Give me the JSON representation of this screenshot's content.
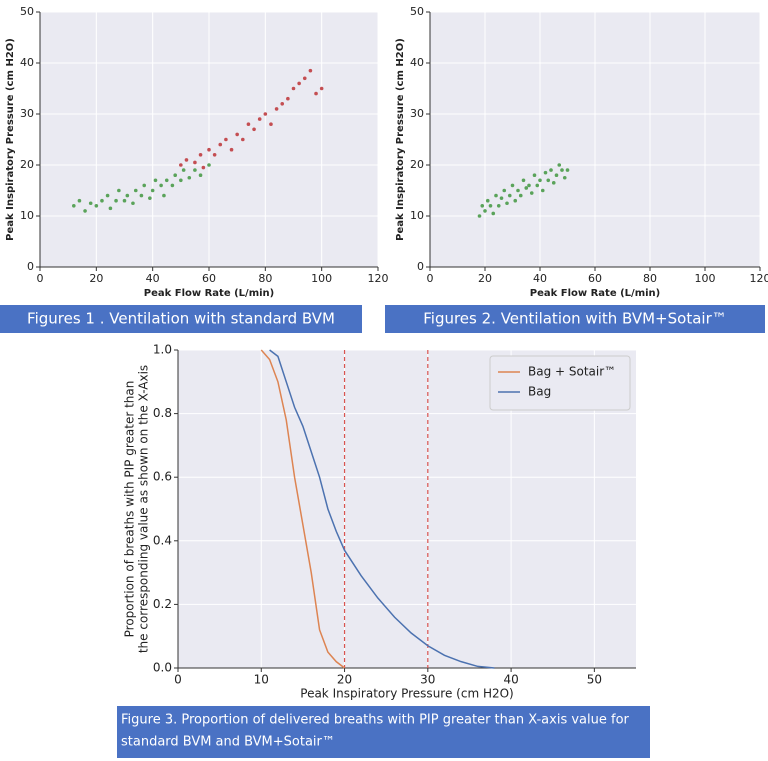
{
  "chart_data": [
    {
      "type": "scatter",
      "caption": "Figures 1 .  Ventilation with standard BVM",
      "xlabel": "Peak Flow Rate (L/min)",
      "ylabel": "Peak Inspiratory Pressure (cm H2O)",
      "xlim": [
        0,
        120
      ],
      "xticks": [
        0,
        20,
        40,
        60,
        80,
        100,
        120
      ],
      "ylim": [
        0,
        50
      ],
      "yticks": [
        0,
        10,
        20,
        30,
        40,
        50
      ],
      "grid": true,
      "series": [
        {
          "color": "#5aa35a",
          "x": [
            12,
            14,
            16,
            18,
            20,
            22,
            24,
            25,
            27,
            28,
            30,
            31,
            33,
            34,
            36,
            37,
            39,
            40,
            41,
            43,
            44,
            45,
            47,
            48,
            50,
            51,
            53,
            55,
            57,
            60
          ],
          "values": [
            12,
            13,
            11,
            12.5,
            12,
            13,
            14,
            11.5,
            13,
            15,
            13,
            14,
            12.5,
            15,
            14,
            16,
            13.5,
            15,
            17,
            16,
            14,
            17,
            16,
            18,
            17,
            19,
            17.5,
            19,
            18,
            20
          ]
        },
        {
          "color": "#c44e52",
          "x": [
            50,
            52,
            55,
            57,
            58,
            60,
            62,
            64,
            66,
            68,
            70,
            72,
            74,
            76,
            78,
            80,
            82,
            84,
            86,
            88,
            90,
            92,
            94,
            96,
            98,
            100
          ],
          "values": [
            20,
            21,
            20.5,
            22,
            19.5,
            23,
            22,
            24,
            25,
            23,
            26,
            25,
            28,
            27,
            29,
            30,
            28,
            31,
            32,
            33,
            35,
            36,
            37,
            38.5,
            34,
            35
          ]
        }
      ]
    },
    {
      "type": "scatter",
      "caption": "Figures 2.  Ventilation with BVM+Sotair™",
      "xlabel": "Peak Flow Rate (L/min)",
      "ylabel": "Peak Inspiratory Pressure (cm H2O)",
      "xlim": [
        0,
        120
      ],
      "xticks": [
        0,
        20,
        40,
        60,
        80,
        100,
        120
      ],
      "ylim": [
        0,
        50
      ],
      "yticks": [
        0,
        10,
        20,
        30,
        40,
        50
      ],
      "grid": true,
      "series": [
        {
          "color": "#5aa35a",
          "x": [
            18,
            19,
            20,
            21,
            22,
            23,
            24,
            25,
            26,
            27,
            28,
            29,
            30,
            31,
            32,
            33,
            34,
            35,
            36,
            37,
            38,
            39,
            40,
            41,
            42,
            43,
            44,
            45,
            46,
            47,
            48,
            49,
            50
          ],
          "values": [
            10,
            12,
            11,
            13,
            12,
            10.5,
            14,
            12,
            13.5,
            15,
            12.5,
            14,
            16,
            13,
            15,
            14,
            17,
            15.5,
            16,
            14.5,
            18,
            16,
            17,
            15,
            18.5,
            17,
            19,
            16.5,
            18,
            20,
            19,
            17.5,
            19
          ]
        }
      ]
    },
    {
      "type": "line",
      "caption": [
        "Figure 3. Proportion of delivered breaths with PIP greater than X-axis value for",
        "standard BVM and BVM+Sotair™"
      ],
      "xlabel": "Peak Inspiratory Pressure (cm H2O)",
      "ylabel": [
        "Proportion of breaths with PIP greater than",
        "the corresponding value as shown on the X-Axis"
      ],
      "xlim": [
        0,
        55
      ],
      "xticks": [
        0,
        10,
        20,
        30,
        40,
        50
      ],
      "ylim": [
        0,
        1
      ],
      "yticks": [
        {
          "value": 0,
          "label": "0.0"
        },
        0.2,
        0.4,
        0.6,
        0.8,
        {
          "value": 1,
          "label": "1.0"
        }
      ],
      "grid": true,
      "legend": "upper right",
      "vlines": [
        20,
        30
      ],
      "vline_color": "#d9534f",
      "series": [
        {
          "name": "Bag + Sotair™",
          "color": "#dd8452",
          "x": [
            10,
            11,
            12,
            13,
            14,
            15,
            16,
            17,
            18,
            19,
            20
          ],
          "values": [
            1,
            0.97,
            0.9,
            0.78,
            0.6,
            0.45,
            0.3,
            0.12,
            0.05,
            0.02,
            0
          ]
        },
        {
          "name": "Bag",
          "color": "#4c72b0",
          "x": [
            11,
            12,
            13,
            14,
            15,
            16,
            17,
            18,
            19,
            20,
            22,
            24,
            26,
            28,
            30,
            32,
            34,
            36,
            38
          ],
          "values": [
            1,
            0.98,
            0.9,
            0.82,
            0.76,
            0.68,
            0.6,
            0.5,
            0.43,
            0.37,
            0.29,
            0.22,
            0.16,
            0.11,
            0.07,
            0.04,
            0.02,
            0.005,
            0
          ]
        }
      ]
    }
  ]
}
